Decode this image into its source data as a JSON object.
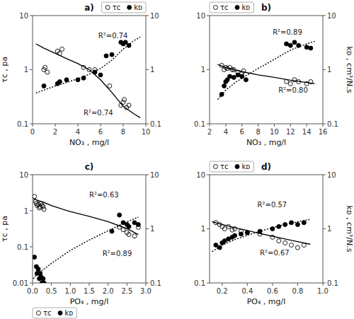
{
  "chart_data": [
    {
      "type": "scatter",
      "title": "a)",
      "x_label": "NO₃ , mg/l",
      "y_label": "τᴄ , pa",
      "xlim": [
        0,
        10
      ],
      "xticks": [
        0,
        2,
        4,
        6,
        8,
        10
      ],
      "ylim": [
        0.1,
        10
      ],
      "yticks": [
        0.1,
        1,
        10
      ],
      "y2lim": [
        0.1,
        10
      ],
      "y2ticks": [
        0.1,
        1,
        10
      ],
      "log": "y",
      "grid": false,
      "legend": "upper right",
      "series": [
        {
          "name": "τᴄ",
          "type": "scatter",
          "marker": "circle-open",
          "color": "black",
          "x": [
            1.0,
            1.1,
            1.3,
            2.2,
            2.4,
            2.6,
            4.5,
            5.0,
            5.5,
            6.8,
            7.8,
            8.0,
            8.1,
            8.3,
            8.5
          ],
          "values": [
            1.0,
            1.1,
            0.9,
            2.2,
            2.0,
            2.4,
            1.1,
            1.0,
            1.0,
            0.5,
            0.22,
            0.25,
            0.28,
            0.2,
            0.22
          ]
        },
        {
          "name": "kᴅ",
          "type": "scatter",
          "marker": "circle",
          "color": "black",
          "axis": "y2",
          "x": [
            1.0,
            2.2,
            2.4,
            3.0,
            4.0,
            4.5,
            5.5,
            6.0,
            6.5,
            7.0,
            7.8,
            8.0,
            8.2,
            8.5
          ],
          "values": [
            0.5,
            0.55,
            0.6,
            0.65,
            0.65,
            0.7,
            0.9,
            0.8,
            1.8,
            1.9,
            3.2,
            3.0,
            3.2,
            2.8
          ]
        },
        {
          "type": "line",
          "line_style": "solid",
          "color": "black",
          "x": [
            0.3,
            1,
            2,
            3,
            4,
            5,
            6,
            7,
            8,
            9,
            9.5
          ],
          "values": [
            3.0,
            2.5,
            2.0,
            1.6,
            1.3,
            1.0,
            0.65,
            0.38,
            0.21,
            0.15,
            0.13
          ]
        },
        {
          "type": "line",
          "line_style": "dotted",
          "color": "black",
          "axis": "y2",
          "x": [
            0.3,
            1,
            2,
            3,
            4,
            5,
            6,
            7,
            8,
            9,
            9.5
          ],
          "values": [
            0.37,
            0.42,
            0.5,
            0.58,
            0.68,
            0.82,
            1.05,
            1.5,
            2.4,
            3.5,
            4.0
          ]
        }
      ],
      "annotations": [
        {
          "text": "R²=0.74",
          "x": 4.5,
          "y": 0.145,
          "axis": "y"
        },
        {
          "text": "R²=0.74",
          "x": 5.8,
          "y": 3.8,
          "axis": "y2"
        }
      ]
    },
    {
      "type": "scatter",
      "title": "b)",
      "x_label": "NO₃ , mg/l",
      "y2_label": "kᴅ , cm³/N.s",
      "xlim": [
        2,
        16
      ],
      "xticks": [
        2,
        4,
        6,
        8,
        10,
        12,
        14,
        16
      ],
      "ylim": [
        0.1,
        10
      ],
      "yticks": [
        0.1,
        1,
        10
      ],
      "y2lim": [
        0.1,
        10
      ],
      "y2ticks": [
        0.1,
        1,
        10
      ],
      "log": "y",
      "grid": false,
      "legend": "upper left",
      "series": [
        {
          "name": "τᴄ",
          "type": "scatter",
          "marker": "circle-open",
          "color": "black",
          "x": [
            3.5,
            3.8,
            4.0,
            4.2,
            4.5,
            4.8,
            5.0,
            5.5,
            6.0,
            6.2,
            11.5,
            12.0,
            12.5,
            13.0,
            14.0,
            14.5
          ],
          "values": [
            1.2,
            1.0,
            1.1,
            1.05,
            1.1,
            1.0,
            1.0,
            0.9,
            0.85,
            0.95,
            0.6,
            0.55,
            0.65,
            0.6,
            0.55,
            0.6
          ]
        },
        {
          "name": "kᴅ",
          "type": "scatter",
          "marker": "circle",
          "color": "black",
          "axis": "y2",
          "x": [
            3.5,
            3.8,
            4.0,
            4.2,
            4.5,
            5.0,
            5.5,
            6.0,
            6.5,
            11.5,
            12.0,
            12.5,
            13.0,
            14.0,
            14.5
          ],
          "values": [
            0.35,
            0.5,
            0.6,
            0.65,
            0.75,
            0.72,
            0.8,
            0.75,
            0.65,
            3.0,
            2.8,
            3.2,
            2.8,
            2.6,
            2.5
          ]
        },
        {
          "type": "line",
          "line_style": "solid",
          "color": "black",
          "x": [
            3,
            4,
            5,
            6,
            8,
            10,
            12,
            14,
            15
          ],
          "values": [
            1.25,
            1.1,
            1.0,
            0.92,
            0.8,
            0.72,
            0.64,
            0.58,
            0.55
          ]
        },
        {
          "type": "line",
          "line_style": "dotted",
          "color": "black",
          "axis": "y2",
          "x": [
            3,
            4,
            5,
            6,
            8,
            10,
            12,
            14,
            15
          ],
          "values": [
            0.28,
            0.42,
            0.55,
            0.7,
            1.05,
            1.55,
            2.3,
            3.0,
            3.35
          ]
        }
      ],
      "annotations": [
        {
          "text": "R²=0.80",
          "x": 10.5,
          "y": 0.38,
          "axis": "y"
        },
        {
          "text": "R²=0.89",
          "x": 9.8,
          "y": 4.5,
          "axis": "y2"
        }
      ]
    },
    {
      "type": "scatter",
      "title": "c)",
      "x_label": "PO₄ , mg/l",
      "y_label": "τᴄ , pa",
      "xlim": [
        0,
        3.0
      ],
      "xticks": [
        {
          "value": 0,
          "label": "0.0"
        },
        0.5,
        {
          "value": 1.0,
          "label": "1.0"
        },
        1.5,
        {
          "value": 2.0,
          "label": "2.0"
        },
        2.5,
        {
          "value": 3.0,
          "label": "3.0"
        }
      ],
      "ylim": [
        0.01,
        10
      ],
      "yticks": [
        0.01,
        0.1,
        1,
        10
      ],
      "y2lim": [
        0.1,
        10
      ],
      "y2ticks": [
        0.1,
        1,
        10
      ],
      "log": "y",
      "grid": false,
      "legend": "lower left",
      "series": [
        {
          "name": "τᴄ",
          "type": "scatter",
          "marker": "circle-open",
          "color": "black",
          "x": [
            0.05,
            0.08,
            0.1,
            0.12,
            0.15,
            0.18,
            0.2,
            0.22,
            0.25,
            0.28,
            0.3,
            2.3,
            2.4,
            2.5,
            2.55,
            2.7,
            2.8
          ],
          "values": [
            2.5,
            1.8,
            1.6,
            1.4,
            1.5,
            1.2,
            1.3,
            1.6,
            1.4,
            1.3,
            1.1,
            0.35,
            0.3,
            0.25,
            0.22,
            0.2,
            0.35
          ]
        },
        {
          "name": "kᴅ",
          "type": "scatter",
          "marker": "circle",
          "color": "black",
          "axis": "y2",
          "x": [
            0.05,
            0.1,
            0.12,
            0.15,
            0.18,
            0.2,
            0.22,
            0.25,
            0.28,
            0.3,
            2.1,
            2.3,
            2.4,
            2.5,
            2.55,
            2.7,
            2.8
          ],
          "values": [
            0.3,
            0.2,
            0.15,
            0.18,
            0.12,
            0.15,
            0.13,
            0.1,
            0.12,
            0.1,
            0.9,
            1.8,
            1.3,
            1.2,
            1.1,
            1.3,
            1.2
          ]
        },
        {
          "type": "line",
          "line_style": "solid",
          "color": "black",
          "x": [
            0.02,
            0.1,
            0.3,
            0.5,
            0.8,
            1.0,
            1.5,
            2.0,
            2.5,
            2.8
          ],
          "values": [
            2.2,
            2.0,
            1.7,
            1.4,
            1.1,
            0.95,
            0.7,
            0.5,
            0.32,
            0.22
          ]
        },
        {
          "type": "line",
          "line_style": "dotted",
          "color": "black",
          "axis": "y2",
          "x": [
            0.02,
            0.1,
            0.3,
            0.5,
            0.8,
            1.0,
            1.5,
            2.0,
            2.5,
            2.8
          ],
          "values": [
            0.12,
            0.14,
            0.18,
            0.23,
            0.32,
            0.4,
            0.62,
            0.92,
            1.35,
            1.65
          ]
        }
      ],
      "annotations": [
        {
          "text": "R²=0.89",
          "x": 1.85,
          "y": 0.055,
          "axis": "y"
        },
        {
          "text": "R²=0.63",
          "x": 1.5,
          "y": 3.8,
          "axis": "y2"
        }
      ]
    },
    {
      "type": "scatter",
      "title": "d)",
      "x_label": "PO₄ , mg/l",
      "y2_label": "kᴅ , cm³/N.s",
      "xlim": [
        0.1,
        1.0
      ],
      "xticks": [
        0.2,
        0.4,
        0.6,
        0.8,
        {
          "value": 1.0,
          "label": "1.0"
        }
      ],
      "ylim": [
        0.1,
        10
      ],
      "yticks": [
        0.1,
        1,
        10
      ],
      "y2lim": [
        0.1,
        10
      ],
      "y2ticks": [
        0.1,
        1,
        10
      ],
      "log": "y",
      "grid": false,
      "legend": "upper left",
      "series": [
        {
          "name": "τᴄ",
          "type": "scatter",
          "marker": "circle-open",
          "color": "black",
          "x": [
            0.15,
            0.18,
            0.2,
            0.22,
            0.25,
            0.28,
            0.3,
            0.35,
            0.4,
            0.5,
            0.6,
            0.65,
            0.7,
            0.75,
            0.8,
            0.85
          ],
          "values": [
            1.3,
            1.2,
            1.1,
            1.0,
            1.1,
            0.95,
            1.0,
            0.9,
            0.85,
            0.8,
            0.7,
            0.6,
            0.55,
            0.5,
            0.45,
            0.5
          ]
        },
        {
          "name": "kᴅ",
          "type": "scatter",
          "marker": "circle",
          "color": "black",
          "axis": "y2",
          "x": [
            0.15,
            0.18,
            0.2,
            0.22,
            0.25,
            0.28,
            0.3,
            0.35,
            0.4,
            0.5,
            0.6,
            0.65,
            0.7,
            0.75,
            0.8,
            0.85
          ],
          "values": [
            0.5,
            0.45,
            0.55,
            0.6,
            0.65,
            0.7,
            0.75,
            0.8,
            0.85,
            0.9,
            1.0,
            1.1,
            1.2,
            1.3,
            1.2,
            1.3
          ]
        },
        {
          "type": "line",
          "line_style": "solid",
          "color": "black",
          "x": [
            0.12,
            0.2,
            0.3,
            0.4,
            0.5,
            0.6,
            0.7,
            0.8,
            0.9
          ],
          "values": [
            1.35,
            1.2,
            1.05,
            0.93,
            0.82,
            0.73,
            0.65,
            0.58,
            0.52
          ]
        },
        {
          "type": "line",
          "line_style": "dotted",
          "color": "black",
          "axis": "y2",
          "x": [
            0.12,
            0.2,
            0.3,
            0.4,
            0.5,
            0.6,
            0.7,
            0.8,
            0.9
          ],
          "values": [
            0.38,
            0.5,
            0.63,
            0.76,
            0.9,
            1.05,
            1.2,
            1.35,
            1.5
          ]
        }
      ],
      "annotations": [
        {
          "text": "R²=0.67",
          "x": 0.5,
          "y": 0.32,
          "axis": "y"
        },
        {
          "text": "R²=0.57",
          "x": 0.48,
          "y": 2.5,
          "axis": "y2"
        }
      ]
    }
  ]
}
